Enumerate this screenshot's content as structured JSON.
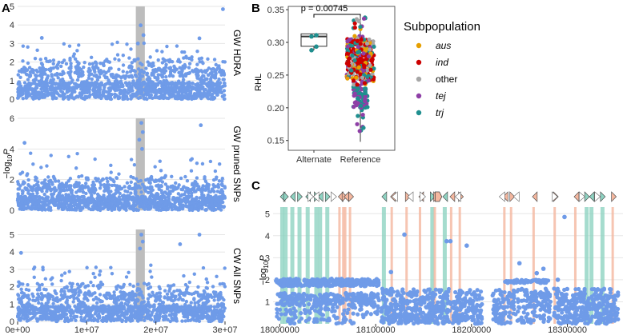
{
  "figure": {
    "panel_letters": [
      "A",
      "B",
      "C"
    ],
    "colors": {
      "point": "#6f9be8",
      "highlight": "#bdbdbd",
      "teal": "#8fd3c2",
      "salmon": "#f4b79f",
      "aus": "#e69f00",
      "ind": "#cc0000",
      "other": "#a6a6a6",
      "tej": "#8e3fa6",
      "trj": "#1f8f8f"
    }
  },
  "chart_data": [
    {
      "panel": "A",
      "type": "scatter",
      "ylabel_pre": "−log",
      "ylabel_sub": "10",
      "ylabel_post": "P",
      "x_tick_labels": [
        "0e+00",
        "1e+07",
        "2e+07",
        "3e+07"
      ],
      "x_ticks": [
        0,
        10000000,
        20000000,
        30000000
      ],
      "xlim": [
        0,
        30000000
      ],
      "highlight_region": [
        17100000,
        18400000
      ],
      "facets": [
        {
          "strip": "GW HDRA",
          "ylim": [
            0,
            5
          ],
          "y_ticks": [
            0,
            1,
            2,
            3,
            4,
            5
          ],
          "peak_points": [
            [
              17800000,
              3.98
            ],
            [
              18200000,
              3.45
            ],
            [
              17400000,
              3.0
            ],
            [
              29700000,
              4.85
            ],
            [
              26300000,
              3.28
            ],
            [
              3500000,
              3.3
            ]
          ]
        },
        {
          "strip": "GW pruned SNPs",
          "ylim": [
            0,
            6
          ],
          "y_ticks": [
            0,
            2,
            4,
            6
          ],
          "peak_points": [
            [
              17900000,
              5.7
            ],
            [
              18100000,
              5.1
            ],
            [
              17600000,
              4.6
            ],
            [
              18000000,
              4.0
            ],
            [
              26500000,
              5.55
            ],
            [
              1000000,
              4.4
            ]
          ]
        },
        {
          "strip": "CW All SNPs",
          "ylim": [
            0,
            5.3
          ],
          "y_ticks": [
            0,
            1,
            2,
            3,
            4,
            5
          ],
          "peak_points": [
            [
              17900000,
              5.0
            ],
            [
              18100000,
              4.6
            ],
            [
              17700000,
              4.2
            ],
            [
              26300000,
              5.0
            ],
            [
              23500000,
              4.45
            ],
            [
              500000,
              3.95
            ]
          ]
        }
      ]
    },
    {
      "panel": "B",
      "type": "box+beeswarm",
      "annotation": "p = 0.00745",
      "ylabel": "RHL",
      "categories": [
        "Alternate",
        "Reference"
      ],
      "y_ticks": [
        0.15,
        0.2,
        0.25,
        0.3,
        0.35
      ],
      "ylim": [
        0.135,
        0.355
      ],
      "boxes": [
        {
          "category": "Alternate",
          "q1": 0.294,
          "median": 0.309,
          "q3": 0.313,
          "whisker_low": 0.288,
          "whisker_high": 0.313,
          "points": [
            {
              "y": 0.309,
              "group": "trj"
            },
            {
              "y": 0.311,
              "group": "trj"
            },
            {
              "y": 0.288,
              "group": "trj"
            },
            {
              "y": 0.2935,
              "group": "trj"
            }
          ]
        },
        {
          "category": "Reference",
          "q1": 0.245,
          "median": 0.264,
          "q3": 0.283,
          "whisker_low": 0.148,
          "whisker_high": 0.34
        }
      ],
      "legend": {
        "title": "Subpopulation",
        "placement": "right",
        "items": [
          {
            "label": "aus",
            "italic": true,
            "color": "#e69f00"
          },
          {
            "label": "ind",
            "italic": true,
            "color": "#cc0000"
          },
          {
            "label": "other",
            "italic": false,
            "color": "#a6a6a6"
          },
          {
            "label": "tej",
            "italic": true,
            "color": "#8e3fa6"
          },
          {
            "label": "trj",
            "italic": true,
            "color": "#1f8f8f"
          }
        ]
      }
    },
    {
      "panel": "C",
      "type": "scatter",
      "ylabel_pre": "−log",
      "ylabel_sub": "10",
      "ylabel_post": "P",
      "x_tick_labels": [
        "18000000",
        "18100000",
        "18200000",
        "18300000"
      ],
      "x_ticks": [
        18000000,
        18100000,
        18200000,
        18300000
      ],
      "xlim": [
        17993000,
        18358000
      ],
      "ylim": [
        0,
        5.3
      ],
      "y_ticks": [
        1,
        2,
        3,
        4,
        5
      ],
      "teal_bands": [
        18000500,
        18004000,
        18011000,
        18018500,
        18027000,
        18036000,
        18040000,
        18047500,
        18106500,
        18157000,
        18170000,
        18318000,
        18323000,
        18334500
      ],
      "salmon_bands": [
        18061000,
        18065000,
        18067000,
        18072000,
        18115500,
        18131000,
        18145000,
        18160500,
        18177500,
        18186500,
        18233000,
        18240000,
        18263500,
        18285500,
        18307000,
        18346000
      ],
      "gaps": [
        [
          18103500,
          18105500
        ],
        [
          18211000,
          18222000
        ],
        [
          18282500,
          18286000
        ]
      ],
      "isolated_points": [
        [
          18130000,
          4.05
        ],
        [
          18297000,
          4.85
        ],
        [
          18195000,
          3.55
        ],
        [
          18174000,
          3.75
        ],
        [
          18178000,
          3.75
        ],
        [
          18250000,
          2.75
        ],
        [
          18268000,
          2.3
        ],
        [
          18275000,
          2.5
        ],
        [
          18290000,
          2.0
        ],
        [
          18116000,
          2.35
        ]
      ]
    }
  ]
}
